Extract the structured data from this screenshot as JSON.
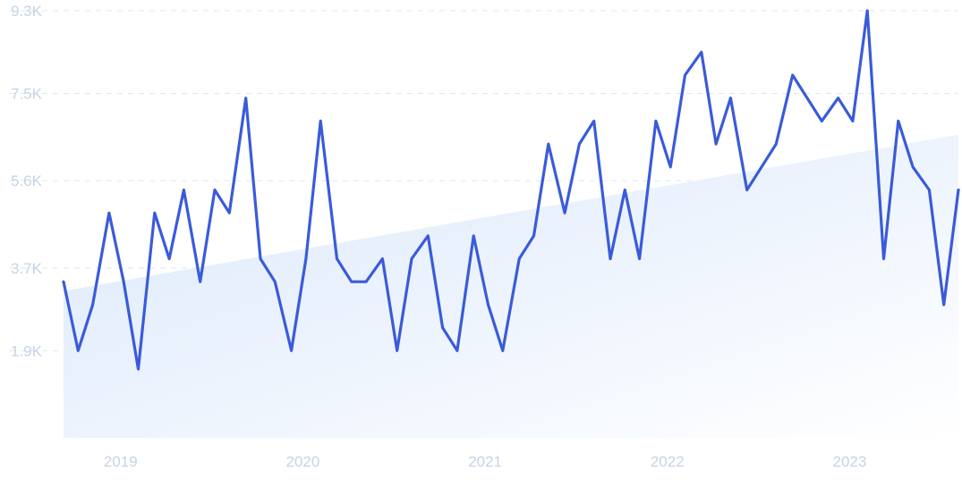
{
  "chart_data": {
    "type": "line",
    "title": "",
    "xlabel": "",
    "ylabel": "",
    "x_range": [
      2018.79,
      2023.7
    ],
    "ylim": [
      0,
      9300
    ],
    "y_ticks": [
      {
        "value": 1900,
        "label": "1.9K"
      },
      {
        "value": 3700,
        "label": "3.7K"
      },
      {
        "value": 5600,
        "label": "5.6K"
      },
      {
        "value": 7500,
        "label": "7.5K"
      },
      {
        "value": 9300,
        "label": "9.3K"
      }
    ],
    "x_ticks": [
      {
        "value": 2019,
        "label": "2019"
      },
      {
        "value": 2020,
        "label": "2020"
      },
      {
        "value": 2021,
        "label": "2021"
      },
      {
        "value": 2022,
        "label": "2022"
      },
      {
        "value": 2023,
        "label": "2023"
      }
    ],
    "grid": true,
    "line_color": "#3a5bd9",
    "trend_color": "#dbe8fb",
    "trend": {
      "start": 3200,
      "end": 6600
    },
    "series": [
      {
        "x": [
          2018.79,
          2018.87,
          2018.95,
          2019.04,
          2019.12,
          2019.2,
          2019.29,
          2019.37,
          2019.45,
          2019.54,
          2019.62,
          2019.7,
          2019.79,
          2019.87,
          2019.95,
          2020.04,
          2020.12,
          2020.2,
          2020.29,
          2020.37,
          2020.45,
          2020.54,
          2020.62,
          2020.7,
          2020.79,
          2020.87,
          2020.95,
          2021.04,
          2021.12,
          2021.2,
          2021.29,
          2021.37,
          2021.45,
          2021.54,
          2021.62,
          2021.7,
          2021.79,
          2021.87,
          2021.95,
          2022.04,
          2022.12,
          2022.2,
          2022.29,
          2022.37,
          2022.45,
          2022.54,
          2022.62,
          2022.7,
          2022.79,
          2022.87,
          2022.95,
          2023.04,
          2023.12,
          2023.2,
          2023.29,
          2023.37,
          2023.45,
          2023.54,
          2023.62,
          2023.7
        ],
        "values": [
          3400,
          1900,
          2900,
          4900,
          3400,
          1500,
          4900,
          3900,
          5400,
          3400,
          5400,
          4900,
          7400,
          3900,
          3400,
          1900,
          3900,
          6900,
          3900,
          3400,
          3400,
          3900,
          1900,
          3900,
          4400,
          2400,
          1900,
          4400,
          2900,
          1900,
          3900,
          4400,
          6400,
          4900,
          6400,
          6900,
          3900,
          5400,
          3900,
          6900,
          5900,
          7900,
          8400,
          6400,
          7400,
          5400,
          5900,
          6400,
          7900,
          7400,
          6900,
          7400,
          6900,
          9300,
          3900,
          6900,
          5900,
          5400,
          2900,
          5400
        ]
      }
    ]
  }
}
